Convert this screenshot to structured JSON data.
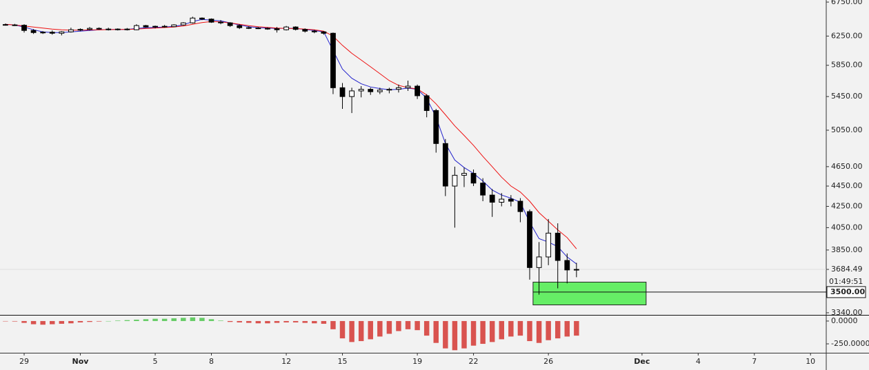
{
  "chart_data": [
    {
      "type": "candlestick",
      "log": true,
      "grid": false,
      "ylim": [
        3324,
        6782
      ],
      "xlim": [
        -1.29,
        42.84
      ],
      "yticks": [
        {
          "value": 6750,
          "label": "6750.00"
        },
        {
          "value": 6250,
          "label": "6250.00"
        },
        {
          "value": 5850,
          "label": "5850.00"
        },
        {
          "value": 5450,
          "label": "5450.00"
        },
        {
          "value": 5050,
          "label": "5050.00"
        },
        {
          "value": 4650,
          "label": "4650.00"
        },
        {
          "value": 4450,
          "label": "4450.00"
        },
        {
          "value": 4250,
          "label": "4250.00"
        },
        {
          "value": 4050,
          "label": "4050.00"
        },
        {
          "value": 3850,
          "label": "3850.00"
        },
        {
          "value": 3340,
          "label": "3340.00"
        }
      ],
      "xticks": [
        {
          "value": 0,
          "label": "29"
        },
        {
          "value": 3,
          "label": "Nov"
        },
        {
          "value": 7,
          "label": "5"
        },
        {
          "value": 10,
          "label": "8"
        },
        {
          "value": 14,
          "label": "12"
        },
        {
          "value": 17,
          "label": "15"
        },
        {
          "value": 21,
          "label": "19"
        },
        {
          "value": 24,
          "label": "22"
        },
        {
          "value": 28,
          "label": "26"
        },
        {
          "value": 33,
          "label": "Dec"
        },
        {
          "value": 36,
          "label": "4"
        },
        {
          "value": 39,
          "label": "7"
        },
        {
          "value": 42,
          "label": "10"
        }
      ],
      "up_color": "#ffffff",
      "down_color": "#000000",
      "x": [
        -1,
        -0.5,
        0,
        0.5,
        1,
        1.5,
        2,
        2.5,
        3,
        3.5,
        4,
        4.5,
        5,
        5.5,
        6,
        6.5,
        7,
        7.5,
        8,
        8.5,
        9,
        9.5,
        10,
        10.5,
        11,
        11.5,
        12,
        12.5,
        13,
        13.5,
        14,
        14.5,
        15,
        15.5,
        16,
        16.5,
        17,
        17.5,
        18,
        18.5,
        19,
        19.5,
        20,
        20.5,
        21,
        21.5,
        22,
        22.5,
        23,
        23.5,
        24,
        24.5,
        25,
        25.5,
        26,
        26.5,
        27,
        27.5,
        28,
        28.5,
        29,
        29.5
      ],
      "open": [
        6415,
        6410,
        6405,
        6330,
        6300,
        6305,
        6290,
        6310,
        6340,
        6345,
        6360,
        6350,
        6345,
        6350,
        6340,
        6400,
        6380,
        6390,
        6385,
        6410,
        6440,
        6510,
        6495,
        6450,
        6440,
        6400,
        6370,
        6365,
        6360,
        6355,
        6340,
        6380,
        6345,
        6320,
        6310,
        6290,
        5560,
        5450,
        5520,
        5540,
        5510,
        5530,
        5540,
        5560,
        5580,
        5460,
        5280,
        4900,
        4450,
        4560,
        4580,
        4480,
        4360,
        4290,
        4320,
        4300,
        4200,
        3700,
        3790,
        4000,
        3760,
        3680
      ],
      "high": [
        6430,
        6425,
        6420,
        6350,
        6320,
        6330,
        6320,
        6370,
        6360,
        6380,
        6375,
        6370,
        6360,
        6365,
        6420,
        6410,
        6400,
        6410,
        6420,
        6450,
        6530,
        6520,
        6505,
        6480,
        6450,
        6420,
        6390,
        6380,
        6375,
        6380,
        6395,
        6390,
        6360,
        6340,
        6320,
        6300,
        5620,
        5560,
        5580,
        5560,
        5560,
        5560,
        5600,
        5650,
        5600,
        5480,
        5300,
        4950,
        4650,
        4640,
        4620,
        4530,
        4420,
        4380,
        4360,
        4330,
        4220,
        3920,
        4130,
        4090,
        3820,
        3740
      ],
      "low": [
        6400,
        6395,
        6300,
        6280,
        6280,
        6270,
        6260,
        6300,
        6320,
        6330,
        6340,
        6330,
        6330,
        6330,
        6335,
        6370,
        6360,
        6370,
        6380,
        6400,
        6430,
        6480,
        6440,
        6420,
        6380,
        6350,
        6350,
        6350,
        6340,
        6300,
        6330,
        6330,
        6300,
        6290,
        6270,
        5480,
        5300,
        5250,
        5440,
        5470,
        5480,
        5490,
        5500,
        5520,
        5420,
        5200,
        4800,
        4350,
        4050,
        4440,
        4450,
        4300,
        4150,
        4250,
        4250,
        4100,
        3600,
        3480,
        3720,
        3530,
        3570,
        3620
      ],
      "close": [
        6410,
        6405,
        6330,
        6300,
        6305,
        6290,
        6310,
        6340,
        6345,
        6360,
        6350,
        6345,
        6350,
        6340,
        6400,
        6380,
        6390,
        6385,
        6410,
        6440,
        6510,
        6495,
        6450,
        6440,
        6400,
        6370,
        6365,
        6360,
        6355,
        6340,
        6380,
        6345,
        6320,
        6310,
        6290,
        5560,
        5450,
        5520,
        5540,
        5510,
        5530,
        5540,
        5560,
        5580,
        5460,
        5280,
        4900,
        4450,
        4560,
        4580,
        4480,
        4360,
        4290,
        4320,
        4300,
        4200,
        3700,
        3790,
        4000,
        3760,
        3680,
        3684.49
      ],
      "lines": [
        {
          "color": "#2222cc",
          "values": [
            6420,
            6410,
            6380,
            6340,
            6310,
            6300,
            6300,
            6310,
            6320,
            6330,
            6340,
            6345,
            6345,
            6345,
            6360,
            6370,
            6375,
            6380,
            6390,
            6410,
            6460,
            6490,
            6480,
            6470,
            6440,
            6410,
            6385,
            6370,
            6365,
            6360,
            6362,
            6360,
            6345,
            6330,
            6310,
            6050,
            5800,
            5680,
            5610,
            5570,
            5550,
            5535,
            5540,
            5555,
            5540,
            5430,
            5200,
            4900,
            4720,
            4640,
            4580,
            4500,
            4410,
            4360,
            4330,
            4290,
            4100,
            3950,
            3920,
            3880,
            3790,
            3730
          ]
        },
        {
          "color": "#ee1111",
          "values": [
            6420,
            6410,
            6395,
            6380,
            6365,
            6350,
            6340,
            6335,
            6335,
            6338,
            6340,
            6342,
            6344,
            6345,
            6350,
            6358,
            6365,
            6372,
            6380,
            6395,
            6420,
            6445,
            6460,
            6455,
            6440,
            6420,
            6400,
            6385,
            6375,
            6365,
            6360,
            6358,
            6350,
            6340,
            6320,
            6250,
            6120,
            6010,
            5920,
            5830,
            5740,
            5650,
            5590,
            5560,
            5545,
            5470,
            5360,
            5230,
            5100,
            4990,
            4880,
            4760,
            4650,
            4540,
            4450,
            4390,
            4300,
            4190,
            4110,
            4030,
            3960,
            3860
          ]
        }
      ],
      "last_price": {
        "value": 3684.49,
        "label": "3684.49"
      },
      "countdown": "01:49:51",
      "level": {
        "value": 3500,
        "label": "3500.00"
      },
      "zone": {
        "x": [
          27.18,
          33.22
        ],
        "y": [
          3400,
          3580
        ],
        "color": "#66ee66"
      }
    },
    {
      "type": "bar",
      "ylim": [
        -348,
        60
      ],
      "yticks": [
        {
          "value": 0,
          "label": "0.0000"
        },
        {
          "value": -250,
          "label": "-250.0000"
        }
      ],
      "positive_color": "#66cc66",
      "negative_color": "#d9534f",
      "values": [
        -2,
        -5,
        -20,
        -35,
        -40,
        -35,
        -30,
        -25,
        -15,
        -10,
        -5,
        0,
        5,
        10,
        15,
        20,
        25,
        25,
        30,
        35,
        40,
        35,
        20,
        5,
        -10,
        -15,
        -20,
        -25,
        -25,
        -20,
        -15,
        -15,
        -20,
        -25,
        -30,
        -90,
        -190,
        -230,
        -220,
        -200,
        -170,
        -140,
        -110,
        -90,
        -100,
        -160,
        -240,
        -300,
        -320,
        -300,
        -270,
        -250,
        -230,
        -200,
        -170,
        -160,
        -220,
        -240,
        -210,
        -190,
        -170,
        -160
      ]
    }
  ]
}
